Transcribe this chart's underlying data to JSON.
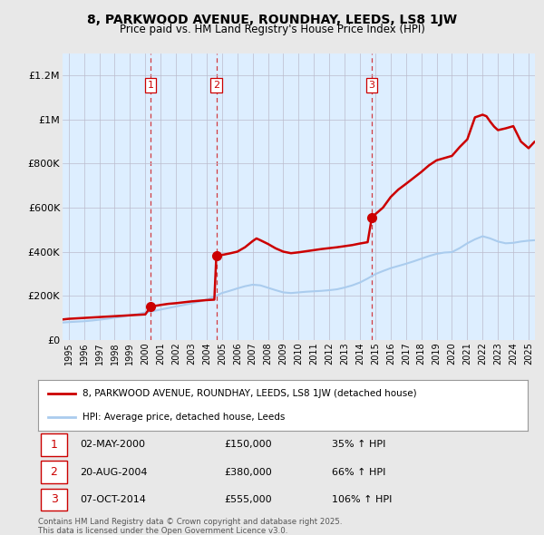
{
  "title": "8, PARKWOOD AVENUE, ROUNDHAY, LEEDS, LS8 1JW",
  "subtitle": "Price paid vs. HM Land Registry's House Price Index (HPI)",
  "legend_line1": "8, PARKWOOD AVENUE, ROUNDHAY, LEEDS, LS8 1JW (detached house)",
  "legend_line2": "HPI: Average price, detached house, Leeds",
  "footer": "Contains HM Land Registry data © Crown copyright and database right 2025.\nThis data is licensed under the Open Government Licence v3.0.",
  "transactions": [
    {
      "num": 1,
      "date": "02-MAY-2000",
      "price": 150000,
      "pct": "35%",
      "year": 2000.34
    },
    {
      "num": 2,
      "date": "20-AUG-2004",
      "price": 380000,
      "pct": "66%",
      "year": 2004.63
    },
    {
      "num": 3,
      "date": "07-OCT-2014",
      "price": 555000,
      "pct": "106%",
      "year": 2014.77
    }
  ],
  "red_line_color": "#cc0000",
  "blue_line_color": "#aaccee",
  "dashed_line_color": "#cc0000",
  "background_color": "#e8e8e8",
  "plot_bg_color": "#ddeeff",
  "ylim": [
    0,
    1300000
  ],
  "xlim_start": 1994.6,
  "xlim_end": 2025.4,
  "yticks": [
    0,
    200000,
    400000,
    600000,
    800000,
    1000000,
    1200000
  ],
  "ytick_labels": [
    "£0",
    "£200K",
    "£400K",
    "£600K",
    "£800K",
    "£1M",
    "£1.2M"
  ],
  "xticks": [
    1995,
    1996,
    1997,
    1998,
    1999,
    2000,
    2001,
    2002,
    2003,
    2004,
    2005,
    2006,
    2007,
    2008,
    2009,
    2010,
    2011,
    2012,
    2013,
    2014,
    2015,
    2016,
    2017,
    2018,
    2019,
    2020,
    2021,
    2022,
    2023,
    2024,
    2025
  ],
  "red_x": [
    1994.6,
    1995.0,
    1995.5,
    1996.0,
    1996.5,
    1997.0,
    1997.5,
    1998.0,
    1998.5,
    1999.0,
    1999.5,
    2000.0,
    2000.34,
    2000.5,
    2001.0,
    2001.5,
    2002.0,
    2002.5,
    2003.0,
    2003.5,
    2004.0,
    2004.5,
    2004.63,
    2005.0,
    2005.5,
    2006.0,
    2006.5,
    2007.0,
    2007.25,
    2007.5,
    2008.0,
    2008.5,
    2009.0,
    2009.5,
    2010.0,
    2010.5,
    2011.0,
    2011.5,
    2012.0,
    2012.5,
    2013.0,
    2013.5,
    2014.0,
    2014.5,
    2014.77,
    2015.0,
    2015.5,
    2016.0,
    2016.5,
    2017.0,
    2017.5,
    2018.0,
    2018.5,
    2019.0,
    2019.5,
    2020.0,
    2020.5,
    2021.0,
    2021.25,
    2021.5,
    2022.0,
    2022.25,
    2022.5,
    2022.75,
    2023.0,
    2023.5,
    2024.0,
    2024.5,
    2025.0,
    2025.4
  ],
  "red_y": [
    92000,
    95000,
    97000,
    99000,
    101000,
    103000,
    105000,
    107000,
    109000,
    111000,
    113000,
    115000,
    150000,
    152000,
    158000,
    163000,
    166000,
    170000,
    174000,
    177000,
    180000,
    182000,
    380000,
    385000,
    392000,
    400000,
    420000,
    448000,
    460000,
    452000,
    435000,
    415000,
    400000,
    393000,
    397000,
    402000,
    407000,
    412000,
    416000,
    420000,
    425000,
    430000,
    437000,
    443000,
    555000,
    570000,
    600000,
    648000,
    682000,
    708000,
    735000,
    762000,
    792000,
    815000,
    825000,
    835000,
    875000,
    910000,
    960000,
    1010000,
    1022000,
    1015000,
    990000,
    968000,
    952000,
    960000,
    970000,
    900000,
    870000,
    900000
  ],
  "blue_x": [
    1994.6,
    1995.0,
    1995.5,
    1996.0,
    1996.5,
    1997.0,
    1997.5,
    1998.0,
    1998.5,
    1999.0,
    1999.5,
    2000.0,
    2000.5,
    2001.0,
    2001.5,
    2002.0,
    2002.5,
    2003.0,
    2003.5,
    2004.0,
    2004.5,
    2005.0,
    2005.5,
    2006.0,
    2006.5,
    2007.0,
    2007.5,
    2008.0,
    2008.5,
    2009.0,
    2009.5,
    2010.0,
    2010.5,
    2011.0,
    2011.5,
    2012.0,
    2012.5,
    2013.0,
    2013.5,
    2014.0,
    2014.5,
    2015.0,
    2015.5,
    2016.0,
    2016.5,
    2017.0,
    2017.5,
    2018.0,
    2018.5,
    2019.0,
    2019.5,
    2020.0,
    2020.5,
    2021.0,
    2021.5,
    2022.0,
    2022.5,
    2023.0,
    2023.5,
    2024.0,
    2024.5,
    2025.0,
    2025.4
  ],
  "blue_y": [
    78000,
    80000,
    82000,
    84000,
    87000,
    91000,
    95000,
    100000,
    105000,
    111000,
    117000,
    124000,
    130000,
    137000,
    144000,
    151000,
    158000,
    165000,
    173000,
    182000,
    196000,
    212000,
    222000,
    233000,
    243000,
    250000,
    247000,
    236000,
    225000,
    215000,
    212000,
    215000,
    218000,
    220000,
    222000,
    225000,
    229000,
    237000,
    247000,
    260000,
    278000,
    298000,
    312000,
    325000,
    335000,
    345000,
    356000,
    368000,
    380000,
    390000,
    396000,
    398000,
    416000,
    438000,
    456000,
    470000,
    460000,
    446000,
    438000,
    440000,
    446000,
    450000,
    452000
  ]
}
